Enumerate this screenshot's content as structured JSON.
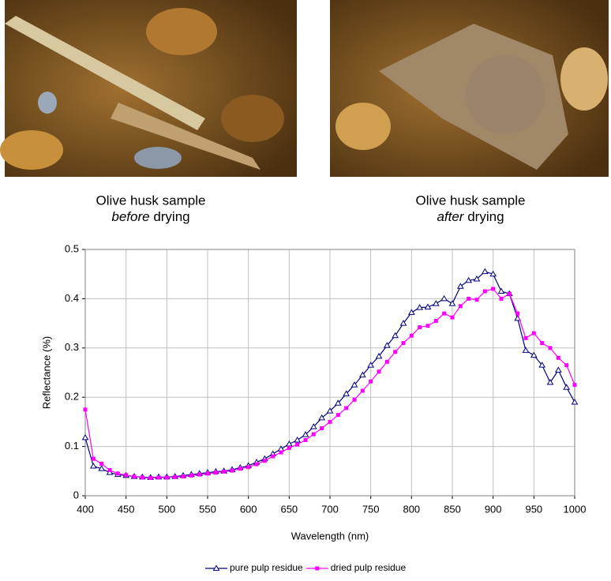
{
  "captions": [
    {
      "line1": "Olive husk sample",
      "emphasis": "before",
      "rest": "drying"
    },
    {
      "line1": "Olive husk sample",
      "emphasis": "after",
      "rest": "drying"
    }
  ],
  "chart_data": {
    "type": "line",
    "x_label": "Wavelength (nm)",
    "y_label": "Reflectance (%)",
    "x": [
      400,
      410,
      420,
      430,
      440,
      450,
      460,
      470,
      480,
      490,
      500,
      510,
      520,
      530,
      540,
      550,
      560,
      570,
      580,
      590,
      600,
      610,
      620,
      630,
      640,
      650,
      660,
      670,
      680,
      690,
      700,
      710,
      720,
      730,
      740,
      750,
      760,
      770,
      780,
      790,
      800,
      810,
      820,
      830,
      840,
      850,
      860,
      870,
      880,
      890,
      900,
      910,
      920,
      930,
      940,
      950,
      960,
      970,
      980,
      990,
      1000
    ],
    "series": [
      {
        "name": "pure pulp residue",
        "color": "#000080",
        "marker": "triangle",
        "values": [
          0.118,
          0.06,
          0.055,
          0.047,
          0.043,
          0.041,
          0.039,
          0.038,
          0.037,
          0.038,
          0.038,
          0.039,
          0.041,
          0.043,
          0.045,
          0.047,
          0.049,
          0.05,
          0.053,
          0.057,
          0.061,
          0.068,
          0.075,
          0.085,
          0.095,
          0.105,
          0.113,
          0.124,
          0.14,
          0.158,
          0.172,
          0.188,
          0.207,
          0.225,
          0.245,
          0.265,
          0.283,
          0.305,
          0.325,
          0.35,
          0.372,
          0.382,
          0.383,
          0.39,
          0.4,
          0.39,
          0.425,
          0.437,
          0.44,
          0.455,
          0.45,
          0.415,
          0.41,
          0.36,
          0.295,
          0.285,
          0.265,
          0.23,
          0.255,
          0.22,
          0.19
        ]
      },
      {
        "name": "dried pulp residue",
        "color": "#ff00ff",
        "marker": "square",
        "values": [
          0.175,
          0.075,
          0.065,
          0.052,
          0.045,
          0.042,
          0.039,
          0.037,
          0.036,
          0.037,
          0.037,
          0.038,
          0.039,
          0.041,
          0.043,
          0.045,
          0.047,
          0.049,
          0.051,
          0.055,
          0.058,
          0.064,
          0.071,
          0.08,
          0.088,
          0.097,
          0.104,
          0.113,
          0.125,
          0.137,
          0.15,
          0.164,
          0.178,
          0.195,
          0.213,
          0.232,
          0.252,
          0.272,
          0.292,
          0.31,
          0.325,
          0.342,
          0.345,
          0.355,
          0.37,
          0.362,
          0.385,
          0.4,
          0.398,
          0.415,
          0.42,
          0.4,
          0.41,
          0.37,
          0.32,
          0.33,
          0.31,
          0.3,
          0.28,
          0.265,
          0.225
        ]
      }
    ],
    "xlim": [
      400,
      1000
    ],
    "xticks": [
      400,
      450,
      500,
      550,
      600,
      650,
      700,
      750,
      800,
      850,
      900,
      950,
      1000
    ],
    "ylim": [
      0,
      0.5
    ],
    "yticks": [
      0,
      0.1,
      0.2,
      0.3,
      0.4,
      0.5
    ],
    "grid": true,
    "legend": "bottom"
  }
}
